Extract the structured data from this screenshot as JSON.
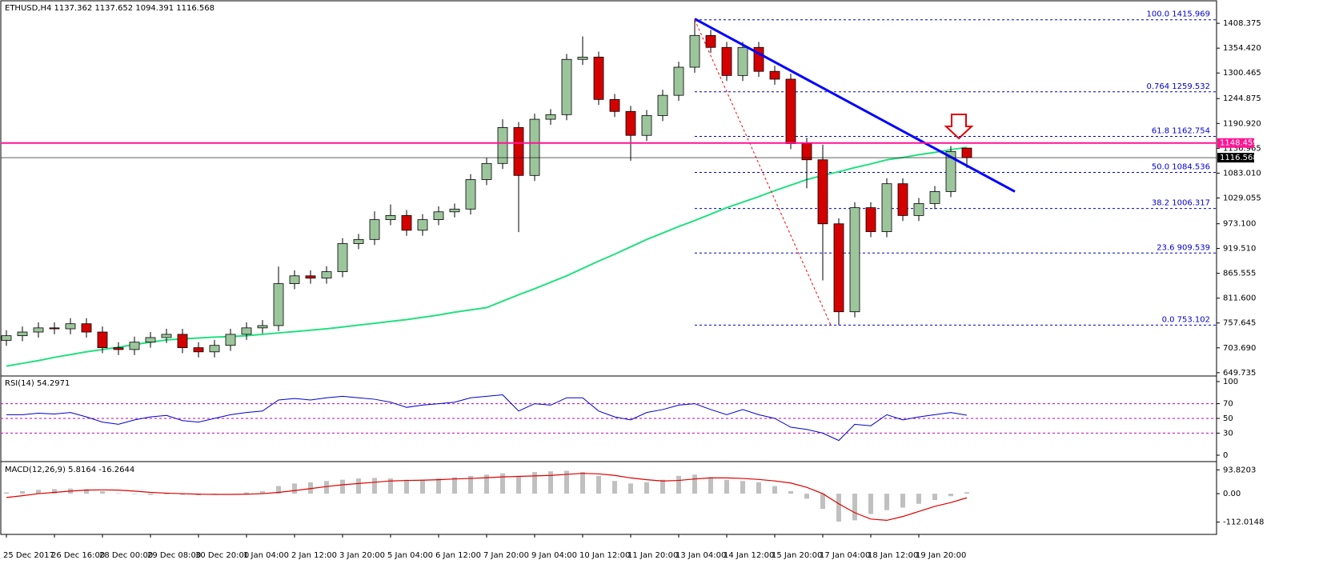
{
  "chart_data": [
    {
      "type": "candlestick",
      "title": "ETHUSD,H4  1137.362 1137.652 1094.391 1116.568",
      "categories": [
        "25 Dec 2017",
        null,
        null,
        "26 Dec 16:00",
        null,
        null,
        "28 Dec 00:00",
        null,
        null,
        "29 Dec 08:00",
        null,
        null,
        "30 Dec 20:00",
        null,
        null,
        "1 Jan 04:00",
        null,
        null,
        "2 Jan 12:00",
        null,
        null,
        "3 Jan 20:00",
        null,
        null,
        "5 Jan 04:00",
        null,
        null,
        "6 Jan 12:00",
        null,
        null,
        "7 Jan 20:00",
        null,
        null,
        "9 Jan 04:00",
        null,
        null,
        "10 Jan 12:00",
        null,
        null,
        "11 Jan 20:00",
        null,
        null,
        "13 Jan 04:00",
        null,
        null,
        "14 Jan 12:00",
        null,
        null,
        "15 Jan 20:00",
        null,
        null,
        "17 Jan 04:00",
        null,
        null,
        "18 Jan 12:00",
        null,
        null,
        "19 Jan 20:00",
        null,
        null,
        null
      ],
      "open": [
        720,
        730,
        738,
        747,
        745,
        756,
        738,
        704,
        700,
        716,
        726,
        733,
        704,
        695,
        709,
        733,
        747,
        752,
        843,
        860,
        855,
        869,
        930,
        939,
        982,
        991,
        959,
        982,
        999,
        1005,
        1069,
        1104,
        1182,
        1078,
        1200,
        1210,
        1330,
        1335,
        1243,
        1217,
        1165,
        1208,
        1252,
        1313,
        1382,
        1356,
        1295,
        1356,
        1304,
        1287,
        1147,
        1112,
        973,
        782,
        1008,
        956,
        1060,
        991,
        1017,
        1043,
        1137.362
      ],
      "high": [
        742,
        750,
        759,
        759,
        768,
        768,
        750,
        716,
        728,
        738,
        745,
        745,
        716,
        721,
        745,
        759,
        764,
        880,
        872,
        872,
        881,
        942,
        951,
        1000,
        1015,
        1003,
        994,
        1011,
        1017,
        1081,
        1116,
        1200,
        1194,
        1212,
        1222,
        1342,
        1380,
        1347,
        1255,
        1229,
        1220,
        1264,
        1325,
        1415.969,
        1394,
        1368,
        1368,
        1368,
        1316,
        1299,
        1160,
        1145,
        985,
        1020,
        1020,
        1072,
        1072,
        1029,
        1055,
        1142,
        1137.652
      ],
      "low": [
        708,
        718,
        726,
        733,
        733,
        726,
        692,
        688,
        688,
        704,
        714,
        692,
        683,
        683,
        697,
        721,
        735,
        740,
        831,
        843,
        843,
        857,
        918,
        927,
        970,
        947,
        947,
        970,
        987,
        993,
        1057,
        1092,
        955,
        1066,
        1188,
        1198,
        1318,
        1231,
        1205,
        1110,
        1153,
        1196,
        1240,
        1301,
        1344,
        1283,
        1283,
        1292,
        1275,
        1135,
        1050,
        850,
        753.102,
        770,
        944,
        944,
        979,
        979,
        1005,
        1031,
        1094.391
      ],
      "close": [
        730,
        738,
        747,
        745,
        756,
        738,
        704,
        700,
        716,
        726,
        733,
        704,
        695,
        709,
        733,
        747,
        752,
        843,
        860,
        855,
        869,
        930,
        939,
        982,
        991,
        959,
        982,
        999,
        1005,
        1069,
        1104,
        1182,
        1078,
        1200,
        1210,
        1330,
        1335,
        1243,
        1217,
        1165,
        1208,
        1252,
        1313,
        1382,
        1356,
        1295,
        1356,
        1304,
        1287,
        1147,
        1112,
        973,
        782,
        1008,
        956,
        1060,
        991,
        1017,
        1043,
        1130,
        1116.568
      ],
      "up_color": "#9cc59c",
      "down_color": "#d40000",
      "ma": {
        "color": "#21e07f",
        "values": [
          664,
          670,
          676,
          683,
          689,
          695,
          700,
          705,
          711,
          716,
          721,
          723,
          725,
          727,
          728,
          730,
          733,
          736,
          739,
          742,
          745,
          749,
          753,
          757,
          761,
          765,
          770,
          775,
          781,
          786,
          791,
          805,
          819,
          832,
          846,
          860,
          876,
          892,
          907,
          923,
          939,
          953,
          967,
          980,
          994,
          1008,
          1020,
          1032,
          1045,
          1057,
          1069,
          1078,
          1086,
          1095,
          1103,
          1112,
          1117,
          1123,
          1128,
          1134,
          1139
        ]
      },
      "ylim": [
        646,
        1452
      ],
      "yticks": [
        1408.375,
        {
          "value": 1354.42,
          "label": "1354.420"
        },
        1300.465,
        1244.875,
        {
          "value": 1190.92,
          "label": "1190.920"
        },
        1136.965,
        {
          "value": 1083.01,
          "label": "1083.010"
        },
        1029.055,
        {
          "value": 973.1,
          "label": "973.100"
        },
        {
          "value": 919.51,
          "label": "919.510"
        },
        865.555,
        {
          "value": 811.6,
          "label": "811.600"
        },
        757.645,
        {
          "value": 703.69,
          "label": "703.690"
        },
        649.735
      ],
      "fib_levels": [
        {
          "label": "100.0  1415.969",
          "value": 1415.969
        },
        {
          "label": "0.764  1259.532",
          "value": 1259.532
        },
        {
          "label": "61.8  1162.754",
          "value": 1162.754
        },
        {
          "label": "50.0  1084.536",
          "value": 1084.536
        },
        {
          "label": "38.2  1006.317",
          "value": 1006.317
        },
        {
          "label": "23.6  909.539",
          "value": 909.539
        },
        {
          "label": "0.0  753.102",
          "value": 753.102
        }
      ],
      "h_lines": [
        {
          "value": 1148.459,
          "color": "#ff1493"
        },
        {
          "value": 1116.568,
          "color": "#000000"
        }
      ],
      "trendline": {
        "x": [
          43,
          63
        ],
        "y": [
          1418,
          1043
        ],
        "color": "#0000ff"
      },
      "swing_line": {
        "x": [
          43,
          51.5
        ],
        "y": [
          1416,
          753
        ],
        "color": "#ff0000"
      }
    },
    {
      "type": "line",
      "title": "RSI(14) 54.2971",
      "values": [
        55,
        55,
        57,
        56,
        58,
        52,
        45,
        42,
        48,
        52,
        54,
        47,
        45,
        50,
        55,
        58,
        60,
        75,
        77,
        75,
        78,
        80,
        78,
        76,
        72,
        65,
        68,
        70,
        72,
        78,
        80,
        82,
        60,
        70,
        68,
        78,
        78,
        60,
        52,
        48,
        58,
        62,
        68,
        70,
        62,
        55,
        62,
        55,
        50,
        38,
        35,
        30,
        20,
        42,
        40,
        55,
        48,
        52,
        55,
        58,
        54.2971
      ],
      "color": "#0000cd",
      "ylim": [
        -6.5,
        105.4
      ],
      "yticks": [
        100,
        70,
        50,
        30,
        0
      ],
      "levels": [
        70,
        50,
        30
      ]
    },
    {
      "type": "macd",
      "title": "MACD(12,26,9) 5.8164 -16.2644",
      "histogram": {
        "color": "#c0c0c0",
        "values": [
          5,
          10,
          15,
          18,
          20,
          18,
          10,
          2,
          -2,
          -5,
          -3,
          -5,
          -6,
          -3,
          0,
          5,
          10,
          30,
          40,
          45,
          50,
          55,
          60,
          62,
          60,
          55,
          55,
          60,
          65,
          70,
          75,
          80,
          70,
          85,
          88,
          90,
          85,
          70,
          50,
          40,
          45,
          55,
          70,
          75,
          65,
          55,
          50,
          45,
          30,
          10,
          -20,
          -60,
          -110,
          -105,
          -80,
          -65,
          -55,
          -40,
          -25,
          -10,
          5.8164
        ]
      },
      "signal": {
        "color": "#e00000",
        "values": [
          -15,
          -8,
          0,
          5,
          10,
          14,
          15,
          14,
          10,
          5,
          2,
          0,
          -2,
          -3,
          -3,
          -2,
          0,
          5,
          12,
          20,
          28,
          35,
          40,
          45,
          50,
          52,
          53,
          55,
          58,
          60,
          63,
          66,
          68,
          70,
          72,
          76,
          80,
          78,
          72,
          62,
          55,
          50,
          52,
          58,
          62,
          62,
          60,
          56,
          50,
          42,
          25,
          0,
          -40,
          -75,
          -100,
          -105,
          -90,
          -70,
          -50,
          -35,
          -16.2644
        ]
      },
      "ylim": [
        -151,
        120
      ],
      "yticks": [
        93.8203,
        {
          "value": 0,
          "label": "0.00"
        },
        -112.0148
      ]
    }
  ]
}
